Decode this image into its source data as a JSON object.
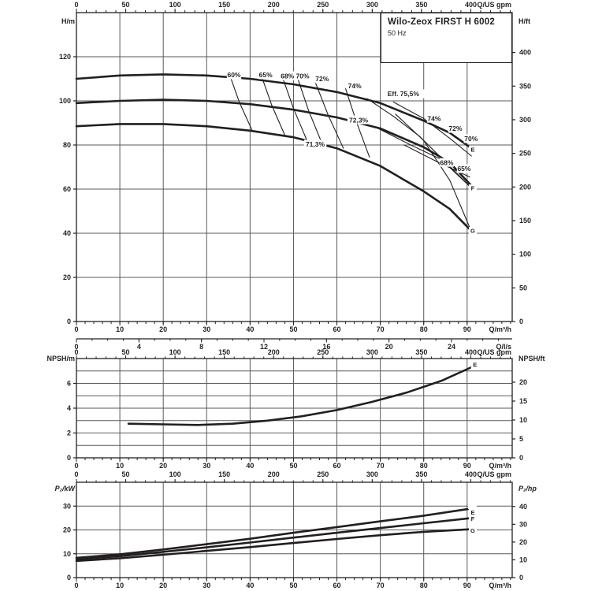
{
  "title_box": {
    "model": "Wilo-Zeox FIRST H 6002",
    "frequency": "50 Hz"
  },
  "colors": {
    "ink": "#231f20",
    "grid": "#595a5c",
    "bg": "#ffffff"
  },
  "chart_data": [
    {
      "id": "head_flow",
      "type": "line",
      "title": "H/Q curves with efficiency contours",
      "x_axes": {
        "us_gpm_top": {
          "label": "Q/US gpm",
          "ticks": [
            0,
            50,
            100,
            150,
            200,
            250,
            300,
            350,
            400
          ]
        },
        "m3h_bottom": {
          "label": "Q/m³/h",
          "ticks": [
            0,
            10,
            20,
            30,
            40,
            50,
            60,
            70,
            80,
            90
          ]
        },
        "ls_bottom": {
          "label": "Q/l/s",
          "ticks": [
            0,
            4,
            8,
            12,
            16,
            20,
            24
          ]
        }
      },
      "y_axis_left": {
        "label": "H/m",
        "ticks": [
          0,
          20,
          40,
          60,
          80,
          100,
          120
        ],
        "range": [
          0,
          140
        ]
      },
      "y_axis_right": {
        "label": "H/ft",
        "ticks": [
          0,
          50,
          100,
          150,
          200,
          250,
          300,
          350,
          400
        ]
      },
      "series": [
        {
          "name": "E",
          "points": [
            [
              0,
              110
            ],
            [
              10,
              111.5
            ],
            [
              20,
              112
            ],
            [
              30,
              111.5
            ],
            [
              40,
              110
            ],
            [
              50,
              107.5
            ],
            [
              60,
              104
            ],
            [
              70,
              99
            ],
            [
              80,
              91
            ],
            [
              86,
              85.5
            ],
            [
              91,
              78.5
            ]
          ]
        },
        {
          "name": "F",
          "points": [
            [
              0,
              99
            ],
            [
              10,
              100
            ],
            [
              20,
              100.5
            ],
            [
              30,
              100
            ],
            [
              40,
              98.5
            ],
            [
              50,
              96
            ],
            [
              60,
              92.5
            ],
            [
              70,
              87.5
            ],
            [
              80,
              79
            ],
            [
              86,
              72
            ],
            [
              91,
              61.5
            ]
          ]
        },
        {
          "name": "G",
          "points": [
            [
              0,
              88.5
            ],
            [
              10,
              89.5
            ],
            [
              20,
              89.5
            ],
            [
              30,
              88.5
            ],
            [
              40,
              86.5
            ],
            [
              50,
              83.5
            ],
            [
              60,
              78.5
            ],
            [
              70,
              70.5
            ],
            [
              80,
              59
            ],
            [
              86,
              51
            ],
            [
              91,
              41
            ]
          ]
        }
      ],
      "efficiency_lines": [
        [
          [
            35,
            113.5
          ],
          [
            37.5,
            99.5
          ],
          [
            40.5,
            86.5
          ]
        ],
        [
          [
            42.5,
            112
          ],
          [
            45,
            98
          ],
          [
            48,
            84.5
          ]
        ],
        [
          [
            47.5,
            110.5
          ],
          [
            50,
            96.5
          ],
          [
            53,
            82.5
          ]
        ],
        [
          [
            51,
            110
          ],
          [
            53.5,
            95.5
          ],
          [
            56.5,
            81
          ]
        ],
        [
          [
            55,
            108.5
          ],
          [
            58,
            93.5
          ],
          [
            61.5,
            78.5
          ]
        ],
        [
          [
            62,
            105.5
          ],
          [
            64.5,
            90.5
          ],
          [
            67.5,
            74.5
          ]
        ],
        [
          [
            67,
            101
          ],
          [
            73,
            93
          ],
          [
            79,
            84
          ],
          [
            90.5,
            61.5
          ]
        ],
        [
          [
            73,
            99.5
          ],
          [
            80,
            92
          ],
          [
            86,
            83
          ],
          [
            91,
            75
          ]
        ],
        [
          [
            73.5,
            94
          ],
          [
            80,
            82
          ],
          [
            86,
            64
          ],
          [
            90.5,
            43
          ]
        ],
        [
          [
            69.5,
            87.5
          ],
          [
            77,
            80
          ],
          [
            84,
            73.5
          ],
          [
            91,
            60.5
          ]
        ],
        [
          [
            75.5,
            80
          ],
          [
            83,
            72.5
          ],
          [
            90.6,
            65.5
          ]
        ]
      ],
      "efficiency_labels": [
        {
          "text": "60%",
          "q": 36.3,
          "v": 111.8
        },
        {
          "text": "65%",
          "q": 43.6,
          "v": 111.8
        },
        {
          "text": "68%",
          "q": 48.6,
          "v": 111.4
        },
        {
          "text": "70%",
          "q": 52.1,
          "v": 111.4
        },
        {
          "text": "72%",
          "q": 56.6,
          "v": 110.0
        },
        {
          "text": "74%",
          "q": 64.1,
          "v": 106.8
        },
        {
          "text": "Eff. 75,5%",
          "q": 75.3,
          "v": 103.2
        },
        {
          "text": "74%",
          "q": 82.4,
          "v": 92.1
        },
        {
          "text": "72%",
          "q": 87.3,
          "v": 87.5
        },
        {
          "text": "70%",
          "q": 90.9,
          "v": 82.9
        },
        {
          "text": "68%",
          "q": 85.3,
          "v": 72.1
        },
        {
          "text": "65%",
          "q": 89.3,
          "v": 69.3
        },
        {
          "text": "72,3%",
          "q": 65.0,
          "v": 91.4
        },
        {
          "text": "71,3%",
          "q": 55.0,
          "v": 80.4
        }
      ],
      "curve_labels": [
        {
          "text": "E",
          "q": 91.3,
          "v": 77.9
        },
        {
          "text": "F",
          "q": 91.3,
          "v": 60.4
        },
        {
          "text": "G",
          "q": 91.3,
          "v": 41.1
        }
      ]
    },
    {
      "id": "npsh",
      "type": "line",
      "title": "NPSH curve",
      "x_axes": {
        "us_gpm_top": {
          "label": "Q/US gpm",
          "ticks": [
            0,
            50,
            100,
            150,
            200,
            250,
            300,
            350,
            400
          ]
        },
        "m3h_bottom": {
          "label": "Q/m³/h",
          "ticks": [
            0,
            10,
            20,
            30,
            40,
            50,
            60,
            70,
            80,
            90
          ]
        }
      },
      "y_axis_left": {
        "label": "NPSH/m",
        "ticks": [
          0,
          2,
          4,
          6
        ],
        "range": [
          0,
          8
        ]
      },
      "y_axis_right": {
        "label": "NPSH/ft",
        "ticks": [
          0,
          5,
          10,
          15,
          20
        ]
      },
      "series": [
        {
          "name": "E",
          "points": [
            [
              12,
              2.75
            ],
            [
              20,
              2.7
            ],
            [
              28,
              2.65
            ],
            [
              36,
              2.75
            ],
            [
              44,
              3.0
            ],
            [
              52,
              3.35
            ],
            [
              60,
              3.85
            ],
            [
              68,
              4.5
            ],
            [
              76,
              5.25
            ],
            [
              84,
              6.2
            ],
            [
              91,
              7.3
            ]
          ]
        }
      ],
      "curve_labels": [
        {
          "text": "E",
          "q": 91.8,
          "v": 7.5
        }
      ]
    },
    {
      "id": "power",
      "type": "line",
      "title": "P2 power curves",
      "x_axes": {
        "us_gpm_top": {
          "label": "Q/US gpm",
          "ticks": [
            0,
            50,
            100,
            150,
            200,
            250,
            300,
            350,
            400
          ]
        },
        "m3h_bottom": {
          "label": "Q/m³/h",
          "ticks": [
            0,
            10,
            20,
            30,
            40,
            50,
            60,
            70,
            80,
            90
          ]
        }
      },
      "y_axis_left": {
        "label": "P₂/kW",
        "ticks": [
          0,
          10,
          20,
          30
        ],
        "range": [
          0,
          40
        ]
      },
      "y_axis_right": {
        "label": "P₂/hp",
        "ticks": [
          0,
          10,
          20,
          30,
          40
        ]
      },
      "series": [
        {
          "name": "E",
          "points": [
            [
              0,
              8.3
            ],
            [
              10,
              9.8
            ],
            [
              20,
              11.8
            ],
            [
              30,
              14
            ],
            [
              40,
              16.3
            ],
            [
              50,
              18.8
            ],
            [
              60,
              21.2
            ],
            [
              70,
              23.6
            ],
            [
              80,
              26
            ],
            [
              91,
              29
            ]
          ]
        },
        {
          "name": "F",
          "points": [
            [
              0,
              7.7
            ],
            [
              10,
              9
            ],
            [
              20,
              10.8
            ],
            [
              30,
              12.7
            ],
            [
              40,
              14.7
            ],
            [
              50,
              16.8
            ],
            [
              60,
              18.8
            ],
            [
              70,
              20.8
            ],
            [
              80,
              22.8
            ],
            [
              91,
              25
            ]
          ]
        },
        {
          "name": "G",
          "points": [
            [
              0,
              7
            ],
            [
              10,
              8.1
            ],
            [
              20,
              9.6
            ],
            [
              30,
              11.2
            ],
            [
              40,
              12.8
            ],
            [
              50,
              14.5
            ],
            [
              60,
              16.2
            ],
            [
              70,
              17.8
            ],
            [
              80,
              19.2
            ],
            [
              91,
              20.3
            ]
          ]
        }
      ],
      "curve_labels": [
        {
          "text": "E",
          "q": 91.3,
          "v": 27.4
        },
        {
          "text": "F",
          "q": 91.3,
          "v": 24.8
        },
        {
          "text": "G",
          "q": 91.3,
          "v": 19.8
        }
      ],
      "highlight_marker": {
        "q": 91.2,
        "v": 29.9
      }
    }
  ]
}
